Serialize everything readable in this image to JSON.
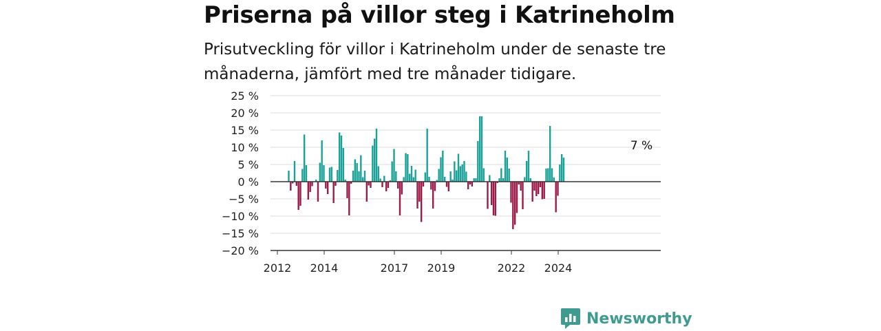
{
  "header": {
    "title": "Priserna på villor steg i Katrineholm",
    "subtitle": "Prisutveckling för villor i Katrineholm under de senaste tre månaderna, jämfört med tre månader tidigare."
  },
  "brand": {
    "name": "Newsworthy",
    "icon": "newsworthy-logo-icon"
  },
  "colors": {
    "positive": "#1aa198",
    "negative": "#9c1a48",
    "grid": "#dcdcdc",
    "axis": "#333333"
  },
  "chart_data": {
    "type": "bar",
    "title": "Priserna på villor steg i Katrineholm",
    "xlabel": "",
    "ylabel": "",
    "ylim": [
      -20,
      25
    ],
    "yticks": [
      25,
      20,
      15,
      10,
      5,
      0,
      -5,
      -10,
      -15,
      -20
    ],
    "ytick_labels": [
      "25 %",
      "20 %",
      "15 %",
      "10 %",
      "5 %",
      "0 %",
      "−5 %",
      "−10 %",
      "−15 %",
      "−20 %"
    ],
    "xticks": [
      2012,
      2014,
      2017,
      2019,
      2022,
      2024
    ],
    "xtick_labels": [
      "2012",
      "2014",
      "2017",
      "2019",
      "2022",
      "2024"
    ],
    "x_start": "2012-01",
    "annotation": "7 %",
    "grid": true,
    "series": [
      {
        "values": [
          3.2,
          -2.6,
          -0.5,
          6.0,
          -1.2,
          -8.2,
          -7.0,
          3.7,
          13.7,
          4.8,
          -5.2,
          -3.0,
          -1.3,
          0.0,
          0.6,
          -5.8,
          5.5,
          12.0,
          4.8,
          -2.0,
          -3.6,
          4.1,
          4.3,
          -6.2,
          -1.2,
          3.4,
          14.3,
          13.4,
          9.8,
          0.6,
          -4.8,
          -9.8,
          -0.6,
          3.2,
          6.5,
          5.4,
          3.0,
          7.7,
          1.3,
          3.2,
          -5.8,
          -1.1,
          -1.8,
          10.5,
          12.5,
          15.4,
          4.5,
          0.9,
          -1.6,
          1.7,
          -2.8,
          -1.8,
          0.4,
          5.9,
          9.5,
          3.0,
          -2.0,
          -9.8,
          -3.7,
          1.3,
          8.3,
          8.0,
          2.3,
          4.6,
          1.3,
          3.5,
          -7.8,
          -5.8,
          -11.7,
          -1.4,
          2.7,
          15.4,
          1.4,
          -2.3,
          -7.8,
          -2.7,
          0.5,
          3.7,
          7.1,
          9.0,
          1.4,
          -1.5,
          -2.8,
          3.0,
          0.6,
          5.9,
          3.3,
          8.1,
          4.5,
          5.0,
          6.0,
          2.9,
          -2.2,
          -0.8,
          -1.4,
          1.0,
          1.0,
          11.8,
          19.0,
          19.0,
          3.9,
          0.0,
          -7.9,
          1.9,
          -6.8,
          -9.8,
          -9.9,
          -0.4,
          1.0,
          3.9,
          1.0,
          9.0,
          7.0,
          3.8,
          -6.1,
          -13.8,
          -12.5,
          -9.1,
          -0.8,
          -2.6,
          -8.0,
          1.3,
          6.0,
          9.0,
          1.0,
          -5.8,
          -2.6,
          -4.2,
          -3.6,
          -1.6,
          -5.1,
          -5.0,
          3.8,
          3.9,
          16.2,
          3.9,
          1.2,
          -8.9,
          -4.1,
          5.0,
          8.0,
          7.0
        ]
      }
    ]
  }
}
